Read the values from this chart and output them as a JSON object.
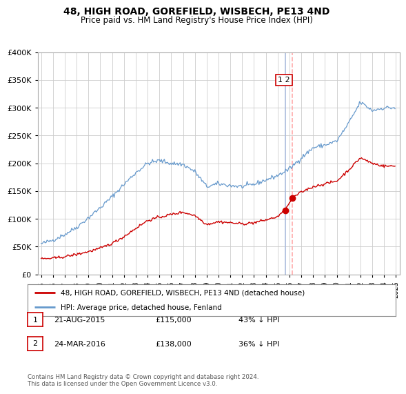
{
  "title": "48, HIGH ROAD, GOREFIELD, WISBECH, PE13 4ND",
  "subtitle": "Price paid vs. HM Land Registry's House Price Index (HPI)",
  "legend_line1": "48, HIGH ROAD, GOREFIELD, WISBECH, PE13 4ND (detached house)",
  "legend_line2": "HPI: Average price, detached house, Fenland",
  "footer": "Contains HM Land Registry data © Crown copyright and database right 2024.\nThis data is licensed under the Open Government Licence v3.0.",
  "transactions": [
    {
      "num": "1",
      "date": "21-AUG-2015",
      "price": "£115,000",
      "hpi": "43% ↓ HPI"
    },
    {
      "num": "2",
      "date": "24-MAR-2016",
      "price": "£138,000",
      "hpi": "36% ↓ HPI"
    }
  ],
  "sale_dates_decimal": [
    2015.638,
    2016.23
  ],
  "sale_prices": [
    115000,
    138000
  ],
  "vline1_color": "#aabbdd",
  "vline2_color": "#ffaaaa",
  "vline1_style": "-",
  "vline2_style": "--",
  "marker_color": "#cc0000",
  "red_line_color": "#cc0000",
  "blue_line_color": "#6699cc",
  "label_box_color": "#cc0000",
  "ylim": [
    0,
    400000
  ],
  "yticks": [
    0,
    50000,
    100000,
    150000,
    200000,
    250000,
    300000,
    350000,
    400000
  ],
  "xlim_start": 1994.7,
  "xlim_end": 2025.3,
  "background_color": "#ffffff",
  "grid_color": "#cccccc",
  "years_hpi": [
    1995,
    1996,
    1997,
    1998,
    1999,
    2000,
    2001,
    2002,
    2003,
    2004,
    2005,
    2006,
    2007,
    2008,
    2009,
    2010,
    2011,
    2012,
    2013,
    2014,
    2015,
    2016,
    2017,
    2018,
    2019,
    2020,
    2021,
    2022,
    2023,
    2024
  ],
  "hpi_values": [
    55000,
    62000,
    72000,
    85000,
    102000,
    120000,
    140000,
    162000,
    183000,
    200000,
    205000,
    200000,
    198000,
    185000,
    158000,
    163000,
    160000,
    158000,
    162000,
    170000,
    178000,
    190000,
    210000,
    228000,
    233000,
    240000,
    272000,
    310000,
    295000,
    300000
  ],
  "red_years": [
    1995,
    1996,
    1997,
    1998,
    1999,
    2000,
    2001,
    2002,
    2003,
    2004,
    2005,
    2006,
    2007,
    2008,
    2009,
    2010,
    2011,
    2012,
    2013,
    2014,
    2015,
    2015.638,
    2016.23,
    2017,
    2018,
    2019,
    2020,
    2021,
    2022,
    2023,
    2024
  ],
  "red_values": [
    28000,
    29000,
    32000,
    36000,
    41000,
    47000,
    56000,
    68000,
    83000,
    97000,
    103000,
    108000,
    112000,
    106000,
    90000,
    95000,
    93000,
    91000,
    93000,
    98000,
    104000,
    115000,
    138000,
    148000,
    158000,
    163000,
    168000,
    188000,
    210000,
    200000,
    195000
  ]
}
